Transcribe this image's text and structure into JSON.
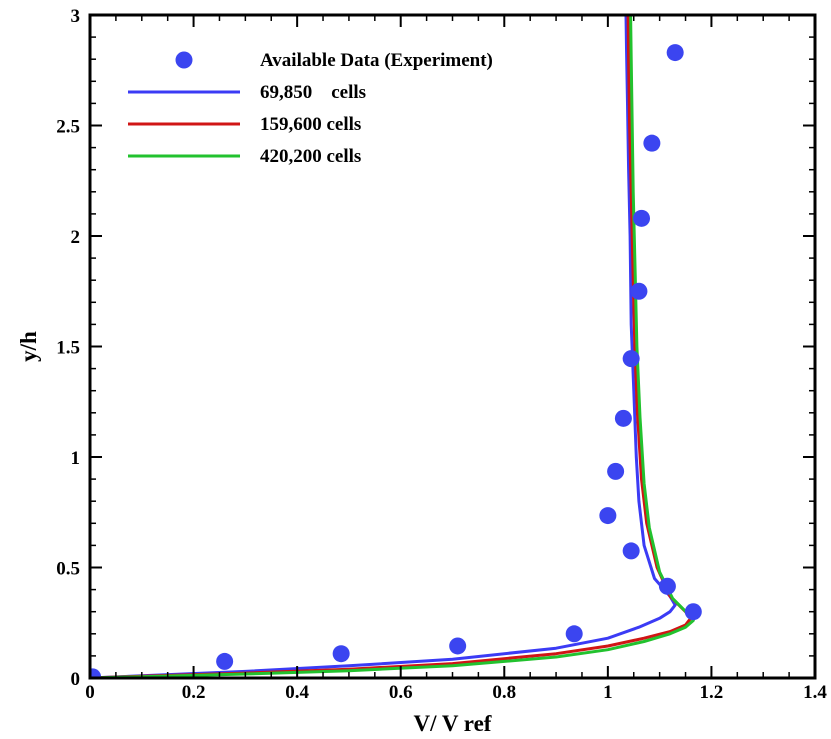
{
  "chart_data": {
    "type": "line",
    "xlabel": "V/ V ref",
    "ylabel": "y/h",
    "xlim": [
      0,
      1.4
    ],
    "ylim": [
      0,
      3
    ],
    "xticks": [
      0,
      0.2,
      0.4,
      0.6,
      0.8,
      1,
      1.2,
      1.4
    ],
    "xtick_labels": [
      "0",
      "0.2",
      "0.4",
      "0.6",
      "0.8",
      "1",
      "1.2",
      "1.4"
    ],
    "yticks": [
      0,
      0.5,
      1,
      1.5,
      2,
      2.5,
      3
    ],
    "ytick_labels": [
      "0",
      "0.5",
      "1",
      "1.5",
      "2",
      "2.5",
      "3"
    ],
    "legend_position": "top-left",
    "grid": false,
    "series": [
      {
        "name": "Available Data (Experiment)",
        "kind": "marker",
        "color": "#3b45f0",
        "x": [
          0.005,
          0.26,
          0.485,
          0.71,
          0.935,
          1.0,
          1.045,
          1.015,
          1.03,
          1.045,
          1.06,
          1.065,
          1.085,
          1.13,
          1.115,
          1.165
        ],
        "y": [
          0.005,
          0.075,
          0.11,
          0.145,
          0.2,
          0.735,
          0.575,
          0.935,
          1.175,
          1.445,
          1.75,
          2.08,
          2.42,
          2.83,
          0.415,
          0.3
        ]
      },
      {
        "name": "69,850    cells",
        "kind": "line",
        "color": "#3b3bf5",
        "x": [
          0.0,
          0.1,
          0.3,
          0.5,
          0.7,
          0.9,
          1.0,
          1.06,
          1.1,
          1.12,
          1.13,
          1.12,
          1.09,
          1.07,
          1.06,
          1.055,
          1.05,
          1.045,
          1.043,
          1.04,
          1.038,
          1.036,
          1.035
        ],
        "y": [
          0.0,
          0.01,
          0.03,
          0.055,
          0.085,
          0.135,
          0.18,
          0.23,
          0.27,
          0.3,
          0.33,
          0.37,
          0.45,
          0.6,
          0.8,
          1.0,
          1.3,
          1.6,
          2.0,
          2.3,
          2.6,
          2.85,
          3.0
        ]
      },
      {
        "name": "159,600 cells",
        "kind": "line",
        "color": "#d01515",
        "x": [
          0.0,
          0.1,
          0.3,
          0.5,
          0.7,
          0.9,
          1.0,
          1.07,
          1.12,
          1.15,
          1.16,
          1.15,
          1.12,
          1.095,
          1.075,
          1.065,
          1.057,
          1.052,
          1.048,
          1.045,
          1.042,
          1.04,
          1.039
        ],
        "y": [
          0.0,
          0.008,
          0.022,
          0.04,
          0.065,
          0.11,
          0.145,
          0.18,
          0.21,
          0.24,
          0.27,
          0.3,
          0.37,
          0.5,
          0.7,
          0.9,
          1.2,
          1.5,
          1.9,
          2.2,
          2.5,
          2.8,
          3.0
        ]
      },
      {
        "name": "420,200 cells",
        "kind": "line",
        "color": "#22c22e",
        "x": [
          0.0,
          0.1,
          0.3,
          0.5,
          0.7,
          0.9,
          1.0,
          1.07,
          1.12,
          1.15,
          1.165,
          1.155,
          1.125,
          1.1,
          1.08,
          1.07,
          1.062,
          1.056,
          1.052,
          1.049,
          1.047,
          1.045,
          1.044
        ],
        "y": [
          0.0,
          0.006,
          0.018,
          0.033,
          0.055,
          0.095,
          0.128,
          0.165,
          0.2,
          0.23,
          0.26,
          0.29,
          0.36,
          0.48,
          0.68,
          0.88,
          1.18,
          1.5,
          1.9,
          2.2,
          2.5,
          2.8,
          3.0
        ]
      }
    ]
  }
}
